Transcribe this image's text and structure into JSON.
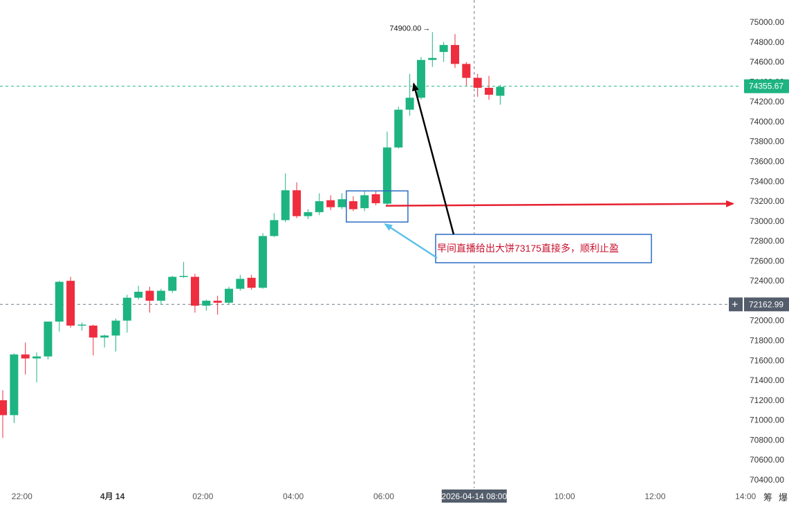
{
  "chart_data": {
    "type": "candlestick",
    "colors": {
      "up": "#1db482",
      "down": "#ee2d3e",
      "last_price_tag": "#1db482",
      "crosshair_tag": "#535d6b",
      "annotation_border": "#2a6cc4",
      "annotation_text": "#c8102e",
      "arrow_red": "#e62030",
      "arrow_blue": "#5bc0eb",
      "arrow_black": "#000000"
    },
    "ylim": [
      70250,
      75150
    ],
    "y_ticks": [
      "75000.00",
      "74800.00",
      "74600.00",
      "74400.00",
      "74200.00",
      "74000.00",
      "73800.00",
      "73600.00",
      "73400.00",
      "73200.00",
      "73000.00",
      "72800.00",
      "72600.00",
      "72400.00",
      "72200.00",
      "72000.00",
      "71800.00",
      "71600.00",
      "71400.00",
      "71200.00",
      "71000.00",
      "70800.00",
      "70600.00",
      "70400.00"
    ],
    "x_ticks": [
      {
        "label": "22:00",
        "slot": 1.7
      },
      {
        "label": "4月 14",
        "slot": 9.7,
        "bold": true
      },
      {
        "label": "02:00",
        "slot": 17.7
      },
      {
        "label": "04:00",
        "slot": 25.7
      },
      {
        "label": "06:00",
        "slot": 33.7
      },
      {
        "label": "10:00",
        "slot": 49.7
      },
      {
        "label": "12:00",
        "slot": 57.7
      },
      {
        "label": "14:00",
        "slot": 65.7
      }
    ],
    "candles": [
      {
        "o": 71200,
        "h": 71300,
        "l": 70820,
        "c": 71050
      },
      {
        "o": 71050,
        "h": 71670,
        "l": 70970,
        "c": 71660
      },
      {
        "o": 71660,
        "h": 71780,
        "l": 71460,
        "c": 71620
      },
      {
        "o": 71620,
        "h": 71680,
        "l": 71380,
        "c": 71640
      },
      {
        "o": 71640,
        "h": 71990,
        "l": 71610,
        "c": 71990
      },
      {
        "o": 71990,
        "h": 72400,
        "l": 71890,
        "c": 72390
      },
      {
        "o": 72400,
        "h": 72440,
        "l": 71930,
        "c": 71950
      },
      {
        "o": 71950,
        "h": 71980,
        "l": 71900,
        "c": 71960
      },
      {
        "o": 71950,
        "h": 71960,
        "l": 71650,
        "c": 71830
      },
      {
        "o": 71830,
        "h": 71860,
        "l": 71730,
        "c": 71850
      },
      {
        "o": 71850,
        "h": 72020,
        "l": 71690,
        "c": 72000
      },
      {
        "o": 72000,
        "h": 72260,
        "l": 71880,
        "c": 72230
      },
      {
        "o": 72230,
        "h": 72350,
        "l": 72210,
        "c": 72290
      },
      {
        "o": 72300,
        "h": 72340,
        "l": 72080,
        "c": 72200
      },
      {
        "o": 72200,
        "h": 72320,
        "l": 72160,
        "c": 72300
      },
      {
        "o": 72300,
        "h": 72450,
        "l": 72280,
        "c": 72440
      },
      {
        "o": 72450,
        "h": 72590,
        "l": 72430,
        "c": 72450
      },
      {
        "o": 72440,
        "h": 72470,
        "l": 72080,
        "c": 72150
      },
      {
        "o": 72150,
        "h": 72210,
        "l": 72100,
        "c": 72200
      },
      {
        "o": 72200,
        "h": 72250,
        "l": 72060,
        "c": 72180
      },
      {
        "o": 72180,
        "h": 72340,
        "l": 72160,
        "c": 72320
      },
      {
        "o": 72320,
        "h": 72460,
        "l": 72300,
        "c": 72420
      },
      {
        "o": 72430,
        "h": 72460,
        "l": 72310,
        "c": 72330
      },
      {
        "o": 72330,
        "h": 72880,
        "l": 72320,
        "c": 72850
      },
      {
        "o": 72850,
        "h": 73080,
        "l": 72840,
        "c": 73010
      },
      {
        "o": 73010,
        "h": 73480,
        "l": 72990,
        "c": 73310
      },
      {
        "o": 73310,
        "h": 73390,
        "l": 73030,
        "c": 73050
      },
      {
        "o": 73050,
        "h": 73120,
        "l": 73020,
        "c": 73090
      },
      {
        "o": 73090,
        "h": 73280,
        "l": 73060,
        "c": 73200
      },
      {
        "o": 73210,
        "h": 73260,
        "l": 73110,
        "c": 73140
      },
      {
        "o": 73140,
        "h": 73280,
        "l": 73120,
        "c": 73220
      },
      {
        "o": 73200,
        "h": 73250,
        "l": 73100,
        "c": 73120
      },
      {
        "o": 73130,
        "h": 73300,
        "l": 73100,
        "c": 73260
      },
      {
        "o": 73270,
        "h": 73300,
        "l": 73160,
        "c": 73180
      },
      {
        "o": 73175,
        "h": 73900,
        "l": 73160,
        "c": 73740
      },
      {
        "o": 73740,
        "h": 74150,
        "l": 73730,
        "c": 74120
      },
      {
        "o": 74120,
        "h": 74480,
        "l": 74060,
        "c": 74240
      },
      {
        "o": 74240,
        "h": 74650,
        "l": 74220,
        "c": 74620
      },
      {
        "o": 74620,
        "h": 74900,
        "l": 74550,
        "c": 74640
      },
      {
        "o": 74700,
        "h": 74800,
        "l": 74600,
        "c": 74770
      },
      {
        "o": 74770,
        "h": 74880,
        "l": 74540,
        "c": 74580
      },
      {
        "o": 74580,
        "h": 74600,
        "l": 74360,
        "c": 74440
      },
      {
        "o": 74440,
        "h": 74480,
        "l": 74250,
        "c": 74340
      },
      {
        "o": 74340,
        "h": 74460,
        "l": 74220,
        "c": 74270
      },
      {
        "o": 74260,
        "h": 74370,
        "l": 74170,
        "c": 74350
      }
    ],
    "last_price": {
      "value": 74355.67,
      "label": "74355.67"
    },
    "crosshair": {
      "value": 72162.99,
      "label": "72162.99",
      "slot": 41.7,
      "time_label": "2026-04-14 08:00"
    },
    "high_marker": {
      "value": 74900,
      "label": "74900.00",
      "candle": 38
    },
    "annotation": {
      "text": "早间直播给出大饼73175直接多，顺利止盈"
    },
    "highlight": {
      "from_candle": 31,
      "to_candle": 34,
      "low": 73130,
      "high": 73290
    },
    "corner_labels": [
      "筹",
      "爆"
    ]
  }
}
